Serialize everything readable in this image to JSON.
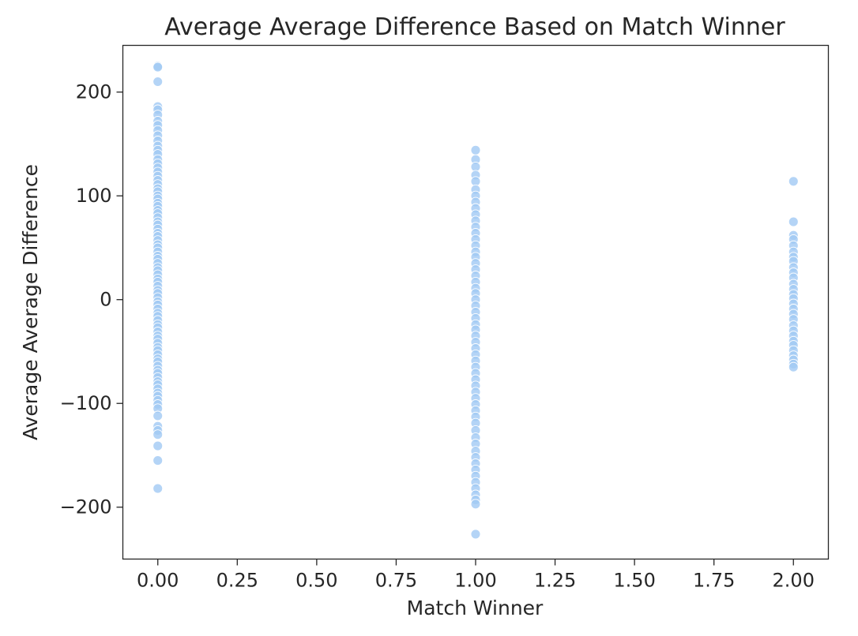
{
  "chart_data": {
    "type": "scatter",
    "title": "Average Average Difference Based on Match Winner",
    "xlabel": "Match Winner",
    "ylabel": "Average Average Difference",
    "xlim": [
      -0.11,
      2.11
    ],
    "ylim": [
      -250,
      245
    ],
    "xticks": [
      0.0,
      0.25,
      0.5,
      0.75,
      1.0,
      1.25,
      1.5,
      1.75,
      2.0
    ],
    "xtick_labels": [
      "0.00",
      "0.25",
      "0.50",
      "0.75",
      "1.00",
      "1.25",
      "1.50",
      "1.75",
      "2.00"
    ],
    "yticks": [
      -200,
      -100,
      0,
      100,
      200
    ],
    "ytick_labels": [
      "−200",
      "−100",
      "0",
      "100",
      "200"
    ],
    "grid": false,
    "point_color": "#a1c9f4",
    "series": [
      {
        "x": 0,
        "y": [
          225,
          224,
          210,
          186,
          183,
          178,
          172,
          168,
          163,
          158,
          153,
          148,
          144,
          140,
          135,
          131,
          127,
          123,
          119,
          115,
          111,
          107,
          104,
          100,
          97,
          93,
          90,
          86,
          83,
          79,
          75,
          72,
          68,
          64,
          61,
          57,
          53,
          50,
          46,
          42,
          39,
          35,
          31,
          28,
          24,
          20,
          17,
          13,
          9,
          6,
          2,
          -2,
          -5,
          -9,
          -13,
          -16,
          -20,
          -24,
          -27,
          -31,
          -35,
          -38,
          -42,
          -46,
          -49,
          -53,
          -57,
          -60,
          -64,
          -68,
          -71,
          -75,
          -79,
          -82,
          -86,
          -90,
          -93,
          -97,
          -101,
          -105,
          -112,
          -122,
          -126,
          -130,
          -141,
          -155,
          -182
        ]
      },
      {
        "x": 1,
        "y": [
          144,
          135,
          128,
          120,
          114,
          106,
          100,
          94,
          88,
          82,
          76,
          70,
          64,
          58,
          52,
          46,
          41,
          35,
          29,
          23,
          17,
          11,
          6,
          0,
          -6,
          -12,
          -18,
          -24,
          -29,
          -35,
          -41,
          -47,
          -53,
          -59,
          -65,
          -71,
          -77,
          -83,
          -89,
          -95,
          -101,
          -107,
          -113,
          -119,
          -126,
          -133,
          -139,
          -146,
          -152,
          -158,
          -164,
          -170,
          -176,
          -182,
          -188,
          -193,
          -197,
          -226
        ]
      },
      {
        "x": 2,
        "y": [
          114,
          75,
          62,
          58,
          52,
          46,
          41,
          37,
          31,
          26,
          21,
          15,
          10,
          5,
          1,
          -4,
          -9,
          -14,
          -19,
          -25,
          -30,
          -35,
          -40,
          -44,
          -49,
          -54,
          -58,
          -62,
          -65
        ]
      }
    ]
  }
}
